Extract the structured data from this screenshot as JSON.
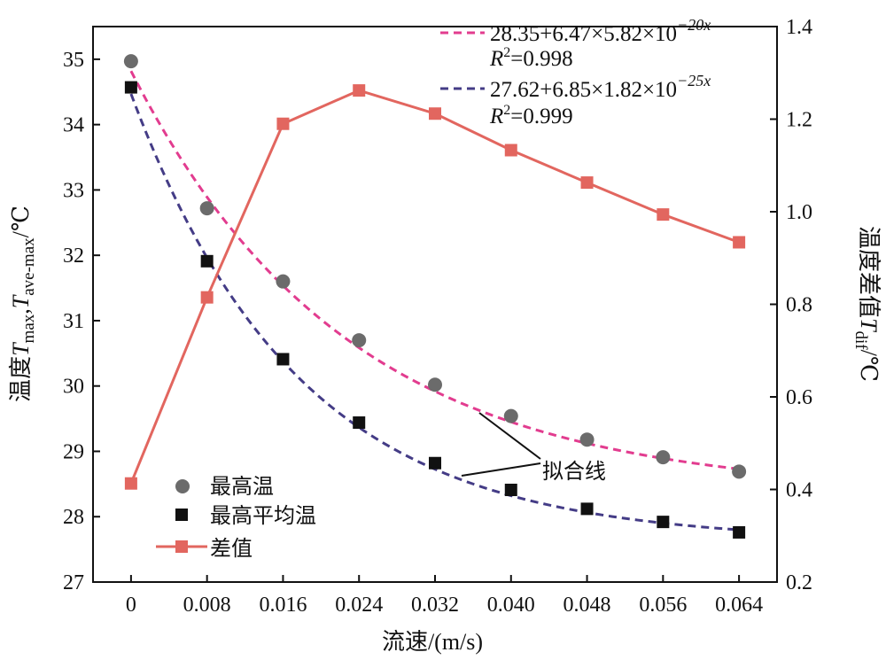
{
  "chart_data": {
    "type": "line",
    "x": [
      0,
      0.008,
      0.016,
      0.024,
      0.032,
      0.04,
      0.048,
      0.056,
      0.064
    ],
    "x_tick_labels": [
      "0",
      "0.008",
      "0.016",
      "0.024",
      "0.032",
      "0.040",
      "0.048",
      "0.056",
      "0.064"
    ],
    "xlabel": "流速/(m/s)",
    "xlim": [
      -0.004,
      0.068
    ],
    "y_left": {
      "ylabel_main": "温度",
      "ylabel_t1": "T",
      "ylabel_sub1": "max",
      "ylabel_sep": ",",
      "ylabel_t2": "T",
      "ylabel_sub2": "ave-max",
      "ylabel_unit": "/℃",
      "ylim": [
        27,
        35.5
      ],
      "ticks": [
        "27",
        "28",
        "29",
        "30",
        "31",
        "32",
        "33",
        "34",
        "35"
      ]
    },
    "y_right": {
      "ylabel_main": "温度差值",
      "ylabel_t": "T",
      "ylabel_sub": "dif",
      "ylabel_unit": "/℃",
      "ylim": [
        0.2,
        1.4
      ],
      "ticks": [
        "0.2",
        "0.4",
        "0.6",
        "0.8",
        "1.0",
        "1.2",
        "1.4"
      ]
    },
    "series": [
      {
        "name": "最高温",
        "axis": "left",
        "marker": "circle",
        "color": "#6b6b6b",
        "values": [
          34.97,
          32.72,
          31.6,
          30.7,
          30.02,
          29.54,
          29.18,
          28.91,
          28.69
        ]
      },
      {
        "name": "最高平均温",
        "axis": "left",
        "marker": "square",
        "color": "#111111",
        "values": [
          34.57,
          31.91,
          30.41,
          29.44,
          28.82,
          28.41,
          28.12,
          27.92,
          27.76
        ]
      },
      {
        "name": "差值",
        "axis": "right",
        "marker": "square-line",
        "color": "#e2665f",
        "values": [
          0.413,
          0.815,
          1.19,
          1.262,
          1.212,
          1.133,
          1.063,
          0.994,
          0.934
        ]
      }
    ],
    "fits": [
      {
        "axis": "left",
        "color": "#e23c8f",
        "dash": "dashed",
        "equation_main": "28.35+6.47×5.82×10",
        "equation_exp": "−20x",
        "r2_label": "R",
        "r2_value": "=0.998",
        "a": 28.35,
        "b": 6.47,
        "c": 5.82,
        "k": 20
      },
      {
        "axis": "left",
        "color": "#443c86",
        "dash": "dashed",
        "equation_main": "27.62+6.85×1.82×10",
        "equation_exp": "−25x",
        "r2_label": "R",
        "r2_value": "=0.999",
        "a": 27.62,
        "b": 6.85,
        "c": 1.82,
        "k": 25
      }
    ],
    "annotation": "拟合线",
    "legend_position": "bottom-left"
  }
}
